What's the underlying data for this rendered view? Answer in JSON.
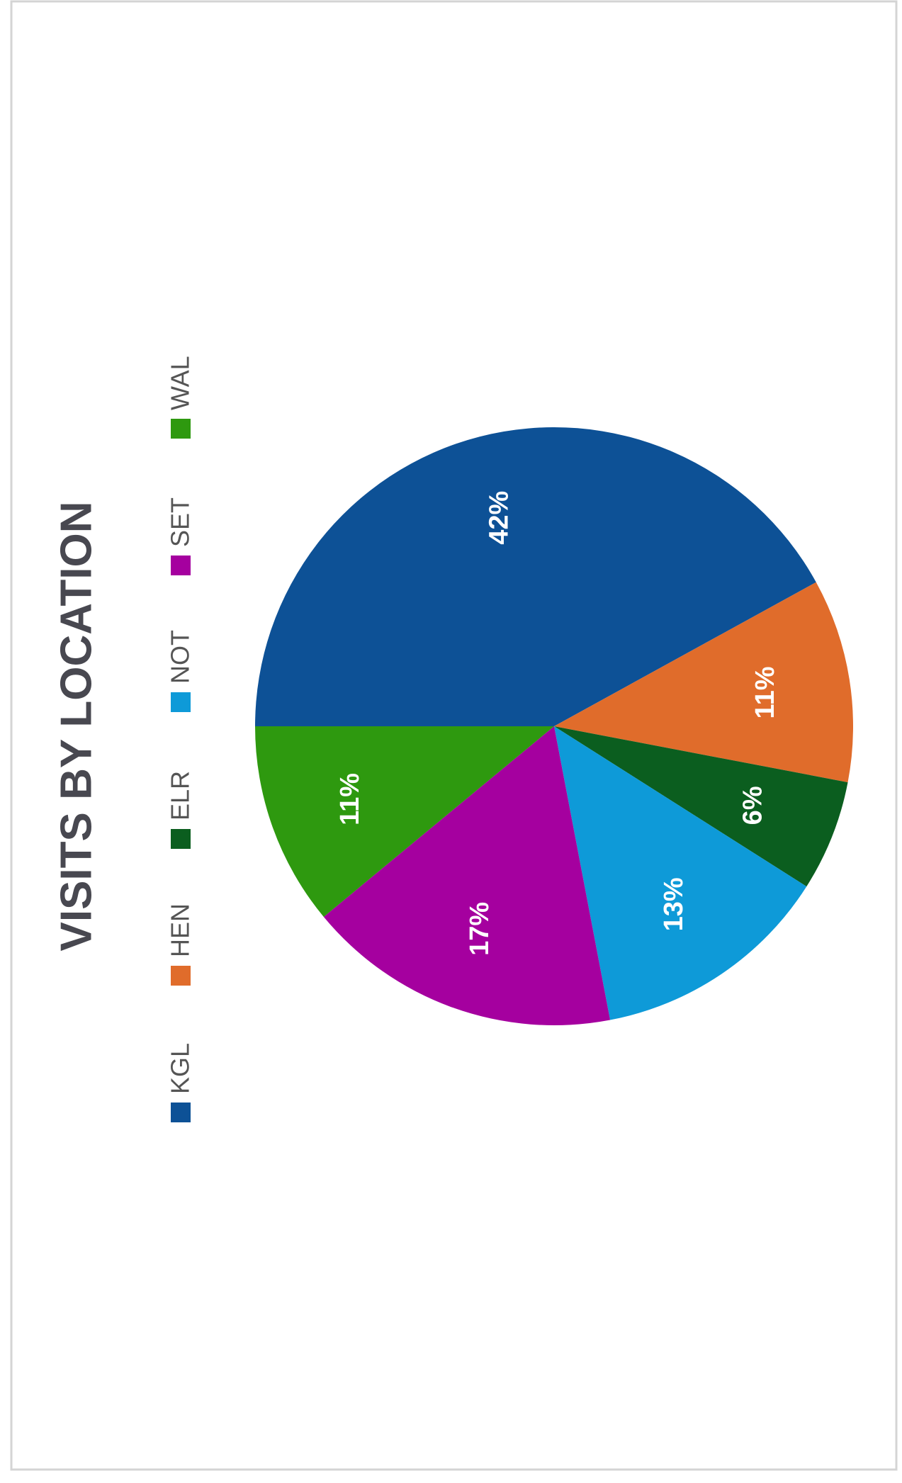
{
  "chart_data": {
    "type": "pie",
    "title": "VISITS BY LOCATION",
    "categories": [
      "KGL",
      "HEN",
      "ELR",
      "NOT",
      "SET",
      "WAL"
    ],
    "values": [
      42,
      11,
      6,
      13,
      17,
      11
    ],
    "value_labels": [
      "42%",
      "11%",
      "6%",
      "13%",
      "17%",
      "11%"
    ],
    "colors": [
      "#0d5196",
      "#e06c2b",
      "#0b5e1f",
      "#0e9ad8",
      "#a5009f",
      "#2e990f"
    ],
    "legend": "top"
  }
}
